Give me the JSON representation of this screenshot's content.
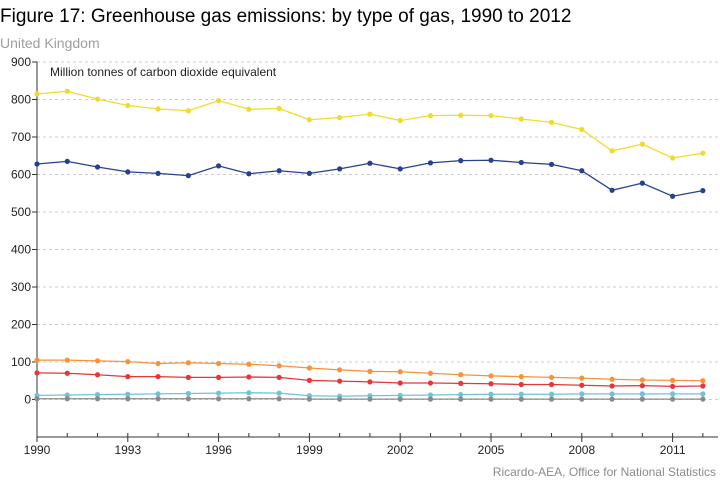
{
  "title": "Figure 17: Greenhouse gas emissions: by type of gas, 1990 to 2012",
  "subtitle": "United Kingdom",
  "source": "Ricardo-AEA, Office for National Statistics",
  "colors": {
    "background": "#ffffff",
    "grid": "#cccccc",
    "axis": "#333333",
    "title": "#000000",
    "subtitle": "#9e9e9e",
    "source": "#8a8a8a"
  },
  "chart_data": {
    "type": "line",
    "title": "Figure 17: Greenhouse gas emissions: by type of gas, 1990 to 2012",
    "subtitle": "United Kingdom",
    "ylabel": "Million tonnes of carbon dioxide equivalent",
    "xlabel": "",
    "ylim": [
      -100,
      900
    ],
    "xlim": [
      1990,
      2012.5
    ],
    "yticks": [
      0,
      100,
      200,
      300,
      400,
      500,
      600,
      700,
      800,
      900
    ],
    "xticks": [
      1990,
      1993,
      1996,
      1999,
      2002,
      2005,
      2008,
      2011
    ],
    "grid": true,
    "legend": "none",
    "x": [
      1990,
      1991,
      1992,
      1993,
      1994,
      1995,
      1996,
      1997,
      1998,
      1999,
      2000,
      2001,
      2002,
      2003,
      2004,
      2005,
      2006,
      2007,
      2008,
      2009,
      2010,
      2011,
      2012
    ],
    "series": [
      {
        "color": "#f0db2c",
        "values": [
          815,
          822,
          801,
          784,
          775,
          770,
          797,
          774,
          776,
          746,
          752,
          761,
          744,
          757,
          758,
          757,
          748,
          739,
          720,
          663,
          681,
          644,
          657
        ]
      },
      {
        "color": "#27408f",
        "values": [
          628,
          635,
          620,
          607,
          603,
          597,
          623,
          602,
          610,
          603,
          615,
          630,
          615,
          631,
          637,
          638,
          632,
          627,
          610,
          558,
          577,
          542,
          557
        ]
      },
      {
        "color": "#f7923a",
        "values": [
          105,
          105,
          103,
          101,
          96,
          98,
          96,
          94,
          90,
          84,
          79,
          75,
          74,
          70,
          66,
          63,
          61,
          59,
          57,
          54,
          52,
          51,
          50
        ]
      },
      {
        "color": "#e43838",
        "values": [
          71,
          70,
          66,
          61,
          61,
          59,
          59,
          60,
          59,
          51,
          49,
          47,
          44,
          44,
          43,
          42,
          40,
          40,
          38,
          36,
          37,
          35,
          36
        ]
      },
      {
        "color": "#6fc3d8",
        "values": [
          11,
          12,
          13,
          14,
          15,
          16,
          17,
          18,
          17,
          10,
          9,
          10,
          11,
          12,
          13,
          14,
          14,
          14,
          15,
          15,
          15,
          15,
          15
        ]
      },
      {
        "color": "#8a8a8a",
        "values": [
          2,
          2,
          2,
          2,
          2,
          2,
          2,
          2,
          2,
          1,
          1,
          1,
          1,
          1,
          1,
          1,
          1,
          1,
          1,
          1,
          1,
          1,
          1
        ]
      }
    ]
  }
}
